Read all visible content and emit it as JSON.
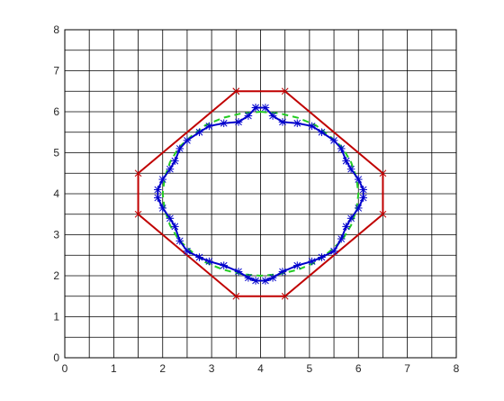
{
  "chart_data": {
    "type": "line",
    "title": "",
    "xlabel": "",
    "ylabel": "",
    "xlim": [
      0,
      8
    ],
    "ylim": [
      0,
      8
    ],
    "xticks": [
      "0",
      "1",
      "2",
      "3",
      "4",
      "5",
      "6",
      "7",
      "8"
    ],
    "yticks": [
      "0",
      "1",
      "2",
      "3",
      "4",
      "5",
      "6",
      "7",
      "8"
    ],
    "grid": true,
    "grid_step": 0.5,
    "legend": "none",
    "series": [
      {
        "color": "#c00000",
        "marker": "x",
        "style": "solid",
        "x": [
          3.5,
          4.5,
          6.5,
          6.5,
          4.5,
          3.5,
          1.5,
          1.5,
          3.5
        ],
        "y": [
          6.5,
          6.5,
          4.5,
          3.5,
          1.5,
          1.5,
          3.5,
          4.5,
          6.5
        ]
      },
      {
        "color": "#22cc22",
        "marker": "none",
        "style": "dashed",
        "x": [
          4.0,
          4.39,
          4.77,
          5.13,
          5.41,
          5.67,
          5.85,
          5.96,
          6.0,
          5.96,
          5.85,
          5.67,
          5.41,
          5.13,
          4.77,
          4.39,
          4.0,
          3.61,
          3.23,
          2.87,
          2.59,
          2.33,
          2.15,
          2.04,
          2.0,
          2.04,
          2.15,
          2.33,
          2.59,
          2.87,
          3.23,
          3.61,
          4.0
        ],
        "y": [
          6.0,
          5.96,
          5.85,
          5.67,
          5.41,
          5.13,
          4.77,
          4.39,
          4.0,
          3.61,
          3.23,
          2.87,
          2.59,
          2.33,
          2.15,
          2.04,
          2.0,
          2.04,
          2.15,
          2.33,
          2.59,
          2.87,
          3.23,
          3.61,
          4.0,
          4.39,
          4.77,
          5.13,
          5.41,
          5.67,
          5.85,
          5.96,
          6.0
        ]
      },
      {
        "color": "#0000cc",
        "marker": "*",
        "style": "solid",
        "x": [
          3.9,
          4.1,
          4.25,
          4.45,
          4.75,
          5.05,
          5.25,
          5.5,
          5.65,
          5.75,
          5.85,
          6.0,
          6.1,
          6.1,
          6.0,
          5.85,
          5.75,
          5.65,
          5.5,
          5.25,
          5.05,
          4.75,
          4.45,
          4.25,
          4.1,
          3.9,
          3.75,
          3.55,
          3.25,
          2.95,
          2.75,
          2.5,
          2.35,
          2.25,
          2.15,
          2.0,
          1.9,
          1.9,
          2.0,
          2.15,
          2.25,
          2.35,
          2.5,
          2.75,
          2.95,
          3.25,
          3.55,
          3.75,
          3.9
        ],
        "y": [
          6.1,
          6.1,
          5.9,
          5.75,
          5.72,
          5.65,
          5.5,
          5.3,
          5.1,
          4.8,
          4.6,
          4.35,
          4.1,
          3.9,
          3.65,
          3.4,
          3.2,
          2.9,
          2.6,
          2.45,
          2.35,
          2.25,
          2.1,
          1.95,
          1.88,
          1.88,
          1.95,
          2.1,
          2.25,
          2.35,
          2.45,
          2.6,
          2.85,
          3.2,
          3.4,
          3.65,
          3.9,
          4.1,
          4.35,
          4.6,
          4.8,
          5.1,
          5.3,
          5.5,
          5.65,
          5.72,
          5.75,
          5.9,
          6.1
        ]
      }
    ]
  }
}
